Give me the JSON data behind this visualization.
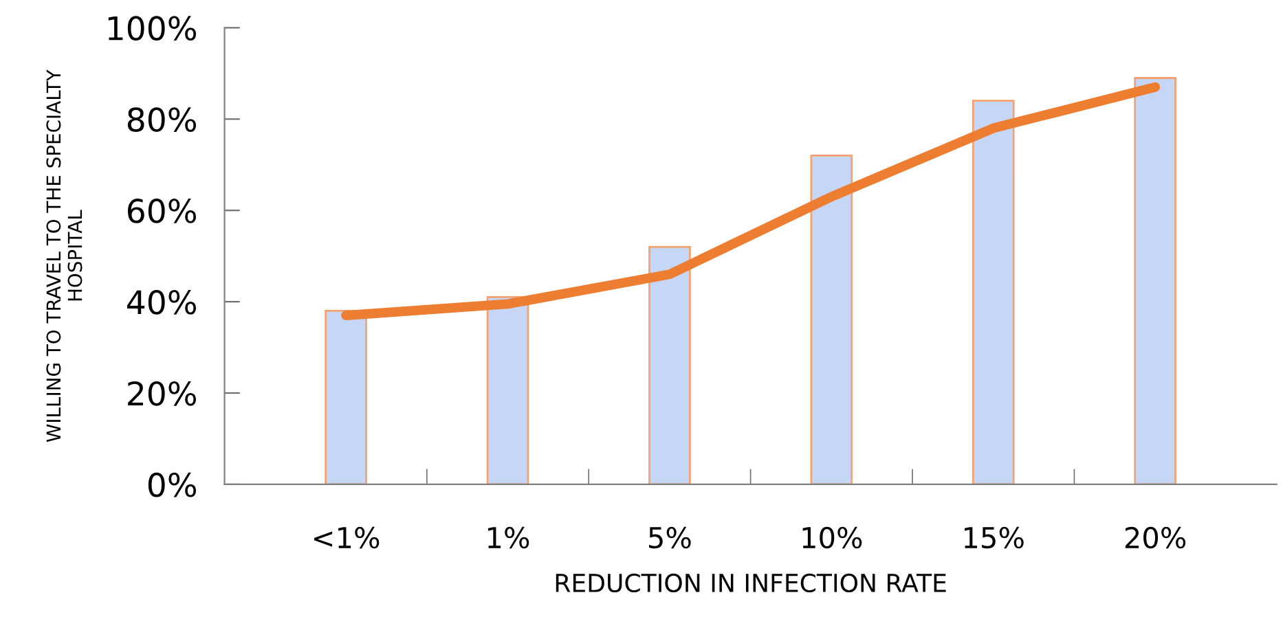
{
  "chart_data": {
    "type": "bar",
    "xlabel": "REDUCTION IN INFECTION RATE",
    "ylabel": "WILLING TO TRAVEL TO THE SPECIALTY\nHOSPITAL",
    "categories": [
      "<1%",
      "1%",
      "5%",
      "10%",
      "15%",
      "20%"
    ],
    "series": [
      {
        "color": "#c6d6f6",
        "values": [
          38,
          41,
          52,
          72,
          84,
          89
        ]
      },
      {
        "type": "line",
        "color": "#ed7d31",
        "values": [
          37,
          39.5,
          46,
          63,
          78,
          87
        ]
      }
    ],
    "ylim": [
      0,
      100
    ],
    "yticks": [
      {
        "value": 0,
        "label": "0%"
      },
      {
        "value": 20,
        "label": "20%"
      },
      {
        "value": 40,
        "label": "40%"
      },
      {
        "value": 60,
        "label": "60%"
      },
      {
        "value": 80,
        "label": "80%"
      },
      {
        "value": 100,
        "label": "100%"
      }
    ],
    "grid": false,
    "legend": false,
    "marker": "none",
    "line_style": "solid"
  }
}
